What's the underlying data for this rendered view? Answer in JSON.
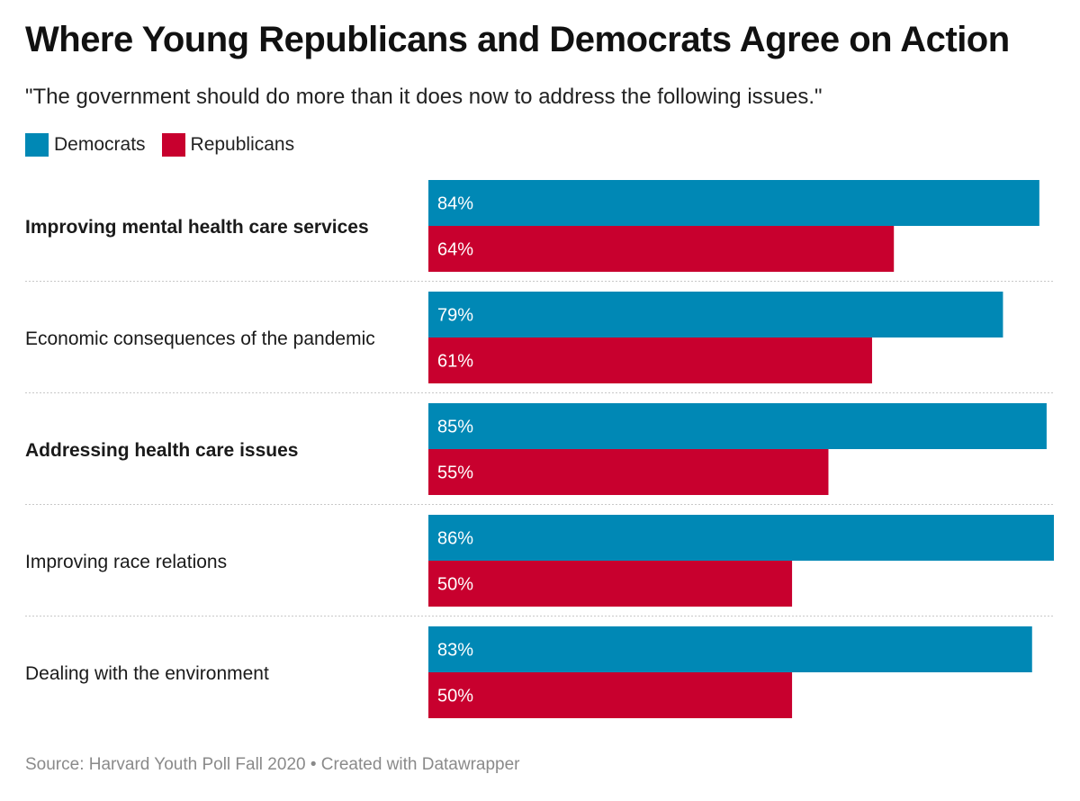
{
  "title": "Where Young Republicans and Democrats Agree on Action",
  "subtitle": "\"The government should do more than it does now to address the following issues.\"",
  "footer": "Source: Harvard Youth Poll Fall 2020 • Created with Datawrapper",
  "colors": {
    "democrats": "#0088b5",
    "republicans": "#c8002e"
  },
  "chart_data": {
    "type": "bar",
    "orientation": "horizontal",
    "title": "Where Young Republicans and Democrats Agree on Action",
    "subtitle": "\"The government should do more than it does now to address the following issues.\"",
    "categories": [
      "Improving mental health care services",
      "Economic consequences of the pandemic",
      "Addressing health care issues",
      "Improving race relations",
      "Dealing with the environment"
    ],
    "bold_categories": [
      true,
      false,
      true,
      false,
      false
    ],
    "series": [
      {
        "name": "Democrats",
        "color": "#0088b5",
        "values": [
          84,
          79,
          85,
          86,
          83
        ],
        "labels": [
          "84%",
          "79%",
          "85%",
          "86%",
          "83%"
        ]
      },
      {
        "name": "Republicans",
        "color": "#c8002e",
        "values": [
          64,
          61,
          55,
          50,
          50
        ],
        "labels": [
          "64%",
          "61%",
          "55%",
          "50%",
          "50%"
        ]
      }
    ],
    "xlim": [
      0,
      86
    ],
    "unit": "%",
    "legend": "top-left",
    "grid": false
  }
}
